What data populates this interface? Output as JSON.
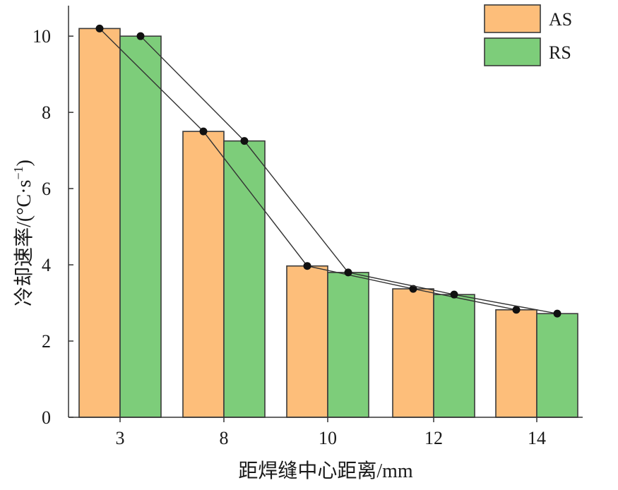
{
  "chart_data": {
    "type": "bar",
    "categories": [
      "3",
      "8",
      "10",
      "12",
      "14"
    ],
    "series": [
      {
        "name": "AS",
        "values": [
          10.2,
          7.5,
          3.97,
          3.37,
          2.82
        ],
        "color": "#FDBE7A"
      },
      {
        "name": "RS",
        "values": [
          10.0,
          7.25,
          3.8,
          3.22,
          2.72
        ],
        "color": "#7DCD7A"
      }
    ],
    "overlay": "line-with-markers connecting bar tops of each series",
    "xlabel": "距焊缝中心距离/mm",
    "ylabel_main": "冷却速率/(°C·s",
    "ylabel_sup": "−1",
    "ylabel_close": ")",
    "ylim": [
      0,
      10.8
    ],
    "yticks": [
      0,
      2,
      4,
      6,
      8,
      10
    ],
    "legend_position": "top-right",
    "grid": false
  }
}
